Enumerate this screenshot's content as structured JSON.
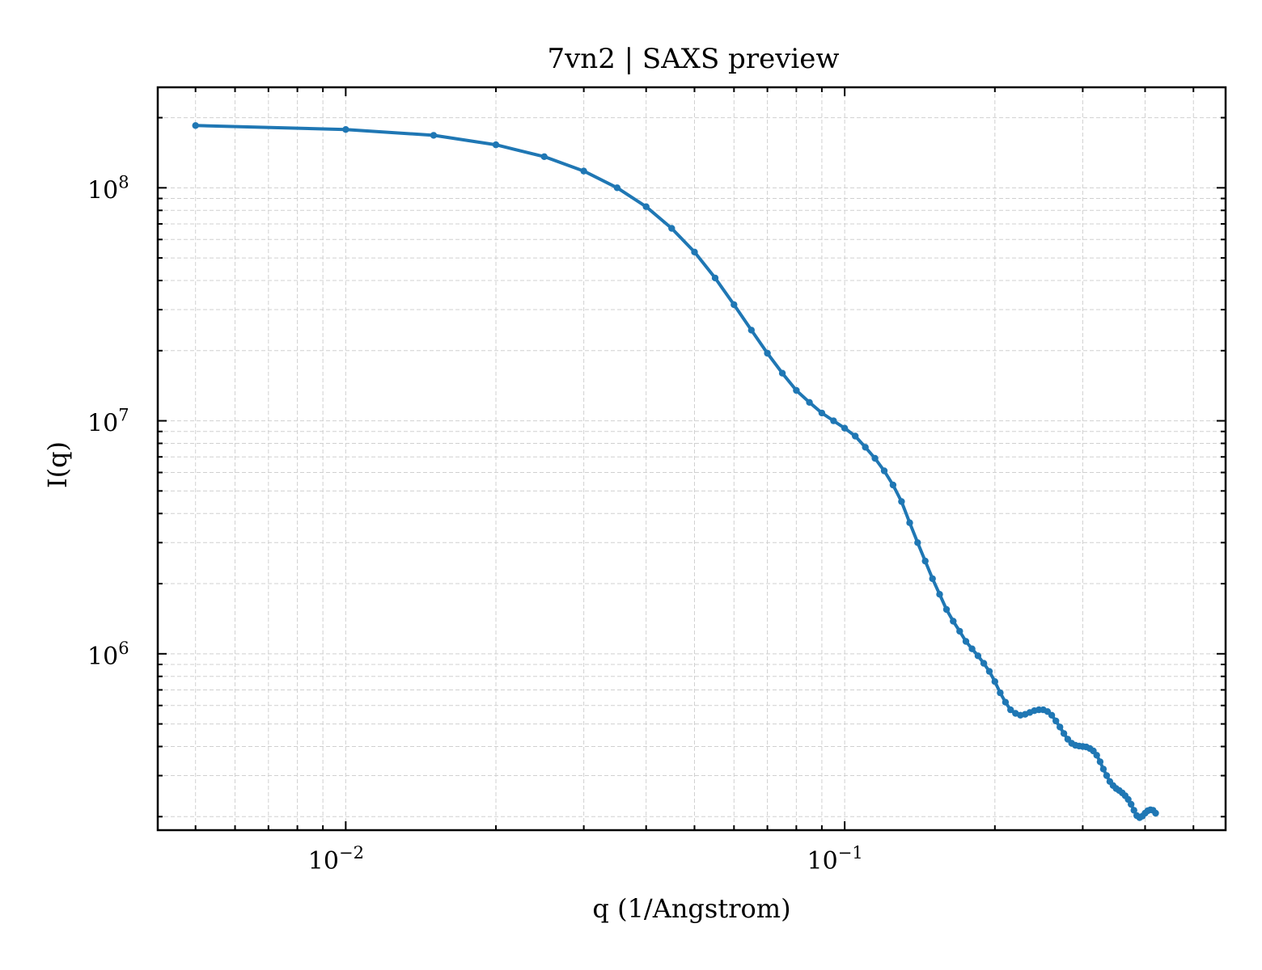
{
  "chart_data": {
    "type": "line",
    "title": "7vn2 | SAXS preview",
    "xlabel": "q (1/Angstrom)",
    "ylabel": "I(q)",
    "xscale": "log",
    "yscale": "log",
    "xlim": [
      0.0042,
      0.58
    ],
    "ylim": [
      175000,
      270000000
    ],
    "grid": true,
    "legend": "none",
    "line_color": "#1f77b4",
    "x_ticks": [
      {
        "value": 0.01,
        "base": "10",
        "exp": "−2"
      },
      {
        "value": 0.1,
        "base": "10",
        "exp": "−1"
      }
    ],
    "y_ticks": [
      {
        "value": 1000000,
        "base": "10",
        "exp": "6"
      },
      {
        "value": 10000000,
        "base": "10",
        "exp": "7"
      },
      {
        "value": 100000000,
        "base": "10",
        "exp": "8"
      }
    ],
    "series": [
      {
        "marker": "dot",
        "points": [
          [
            0.005,
            185000000
          ],
          [
            0.01,
            178000000
          ],
          [
            0.015,
            168000000
          ],
          [
            0.02,
            153000000
          ],
          [
            0.025,
            136000000
          ],
          [
            0.03,
            118000000
          ],
          [
            0.035,
            100000000
          ],
          [
            0.04,
            83000000
          ],
          [
            0.045,
            67000000
          ],
          [
            0.05,
            53000000
          ],
          [
            0.055,
            41000000
          ],
          [
            0.06,
            31500000
          ],
          [
            0.065,
            24500000
          ],
          [
            0.07,
            19500000
          ],
          [
            0.075,
            16000000
          ],
          [
            0.08,
            13500000
          ],
          [
            0.085,
            12000000
          ],
          [
            0.09,
            10800000
          ],
          [
            0.095,
            10000000
          ],
          [
            0.1,
            9300000
          ],
          [
            0.105,
            8600000
          ],
          [
            0.11,
            7700000
          ],
          [
            0.115,
            6900000
          ],
          [
            0.12,
            6100000
          ],
          [
            0.125,
            5300000
          ],
          [
            0.13,
            4500000
          ],
          [
            0.135,
            3650000
          ],
          [
            0.14,
            3000000
          ],
          [
            0.145,
            2500000
          ],
          [
            0.15,
            2100000
          ],
          [
            0.155,
            1800000
          ],
          [
            0.16,
            1550000
          ],
          [
            0.165,
            1380000
          ],
          [
            0.17,
            1250000
          ],
          [
            0.175,
            1130000
          ],
          [
            0.18,
            1050000
          ],
          [
            0.185,
            980000
          ],
          [
            0.19,
            910000
          ],
          [
            0.195,
            840000
          ],
          [
            0.2,
            760000
          ],
          [
            0.205,
            680000
          ],
          [
            0.21,
            620000
          ],
          [
            0.215,
            575000
          ],
          [
            0.22,
            555000
          ],
          [
            0.225,
            545000
          ],
          [
            0.23,
            550000
          ],
          [
            0.235,
            560000
          ],
          [
            0.24,
            570000
          ],
          [
            0.245,
            575000
          ],
          [
            0.25,
            575000
          ],
          [
            0.255,
            565000
          ],
          [
            0.26,
            545000
          ],
          [
            0.265,
            515000
          ],
          [
            0.27,
            485000
          ],
          [
            0.275,
            455000
          ],
          [
            0.28,
            430000
          ],
          [
            0.285,
            413000
          ],
          [
            0.29,
            405000
          ],
          [
            0.295,
            402000
          ],
          [
            0.3,
            400000
          ],
          [
            0.305,
            398000
          ],
          [
            0.31,
            392000
          ],
          [
            0.315,
            383000
          ],
          [
            0.32,
            367000
          ],
          [
            0.325,
            344000
          ],
          [
            0.33,
            320000
          ],
          [
            0.335,
            300000
          ],
          [
            0.34,
            283000
          ],
          [
            0.345,
            272000
          ],
          [
            0.35,
            264000
          ],
          [
            0.355,
            259000
          ],
          [
            0.36,
            253000
          ],
          [
            0.365,
            246000
          ],
          [
            0.37,
            237000
          ],
          [
            0.375,
            226000
          ],
          [
            0.38,
            213000
          ],
          [
            0.385,
            202000
          ],
          [
            0.39,
            198000
          ],
          [
            0.395,
            201000
          ],
          [
            0.4,
            207000
          ],
          [
            0.405,
            212000
          ],
          [
            0.41,
            214000
          ],
          [
            0.415,
            213000
          ],
          [
            0.42,
            207000
          ]
        ]
      }
    ]
  }
}
